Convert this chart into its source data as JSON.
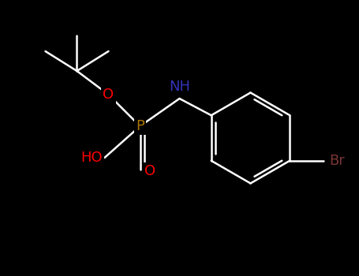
{
  "background_color": "#000000",
  "bond_color": "#ffffff",
  "atom_colors": {
    "O": "#ff0000",
    "N": "#3333bb",
    "P": "#aa7700",
    "Br": "#7a3535",
    "H": "#ffffff",
    "C": "#ffffff"
  },
  "font_size_atoms": 13,
  "figsize": [
    4.55,
    3.5
  ],
  "dpi": 100
}
